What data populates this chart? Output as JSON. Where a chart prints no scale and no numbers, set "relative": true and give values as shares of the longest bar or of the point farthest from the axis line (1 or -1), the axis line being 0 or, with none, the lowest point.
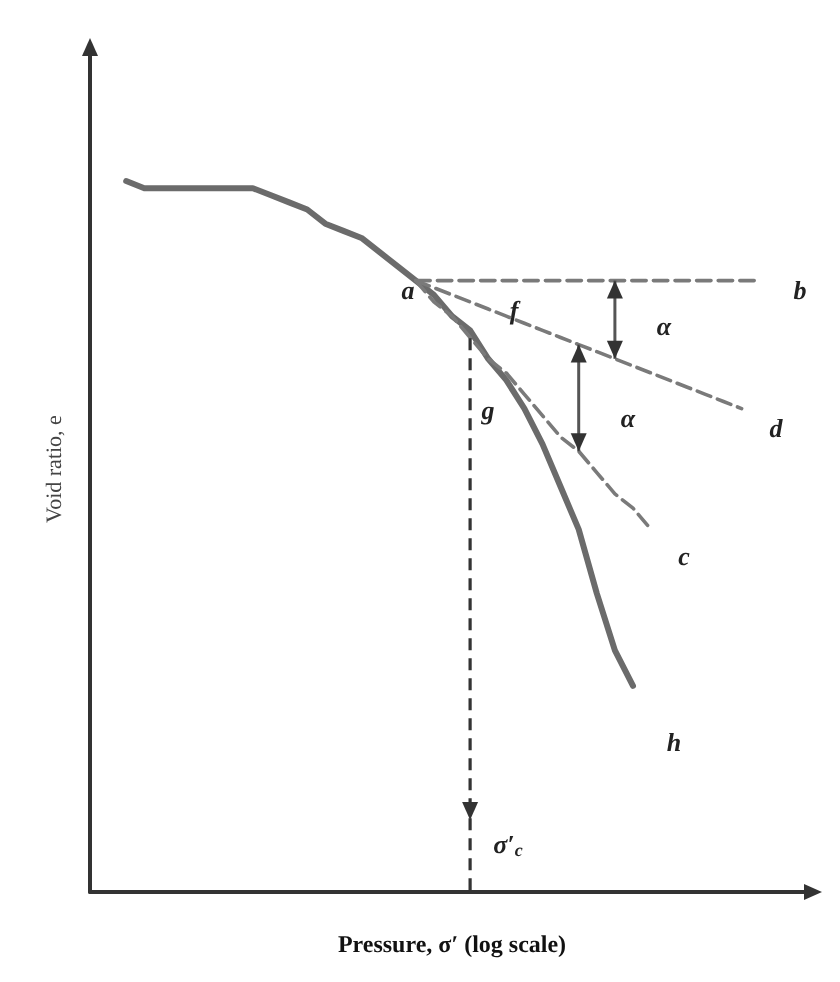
{
  "chart_data": {
    "type": "line",
    "relative": true,
    "xlabel": "Pressure, σ′ (log scale)",
    "ylabel": "Void ratio, e",
    "categories": [
      null,
      null,
      null,
      null,
      null,
      null,
      null,
      null,
      null,
      null,
      null,
      null,
      null,
      null,
      null,
      null,
      null,
      null,
      null,
      null,
      null,
      null,
      null,
      null,
      null,
      null,
      null,
      null,
      null,
      null,
      null,
      null,
      null,
      null,
      null,
      null,
      null,
      null,
      null,
      null,
      null
    ],
    "series": [
      {
        "color": "#6b6b6b",
        "values": [
          null,
          null,
          1.0,
          0.99,
          0.99,
          0.99,
          0.99,
          0.99,
          0.99,
          0.99,
          0.98,
          0.97,
          0.96,
          0.94,
          0.93,
          0.92,
          0.9,
          0.88,
          0.86,
          0.84,
          0.81,
          0.79,
          0.75,
          0.72,
          0.68,
          0.63,
          0.57,
          0.51,
          0.42,
          0.34,
          0.29,
          null,
          null,
          null,
          null,
          null,
          null,
          null,
          null,
          null,
          null
        ]
      },
      {
        "color": "#7a7a7a",
        "line_style": "dashed",
        "values": [
          null,
          null,
          null,
          null,
          null,
          null,
          null,
          null,
          null,
          null,
          null,
          null,
          null,
          null,
          null,
          null,
          null,
          null,
          0.86,
          0.86,
          0.86,
          0.86,
          0.86,
          0.86,
          0.86,
          0.86,
          0.86,
          0.86,
          0.86,
          0.86,
          0.86,
          0.86,
          0.86,
          0.86,
          0.86,
          0.86,
          0.86,
          0.86,
          null,
          null,
          null
        ]
      },
      {
        "color": "#7a7a7a",
        "line_style": "dashed",
        "values": [
          null,
          null,
          null,
          null,
          null,
          null,
          null,
          null,
          null,
          null,
          null,
          null,
          null,
          null,
          null,
          null,
          null,
          null,
          0.86,
          0.85,
          0.84,
          0.83,
          0.82,
          0.81,
          0.8,
          0.79,
          0.78,
          0.77,
          0.76,
          0.75,
          0.74,
          0.73,
          0.72,
          0.71,
          0.7,
          0.69,
          0.68,
          null,
          null,
          null,
          null
        ]
      },
      {
        "color": "#7a7a7a",
        "line_style": "dashed",
        "values": [
          null,
          null,
          null,
          null,
          null,
          null,
          null,
          null,
          null,
          null,
          null,
          null,
          null,
          null,
          null,
          null,
          null,
          null,
          0.86,
          0.83,
          0.81,
          0.78,
          0.75,
          0.73,
          0.7,
          0.67,
          0.64,
          0.62,
          0.59,
          0.56,
          0.54,
          0.51,
          null,
          null,
          null,
          null,
          null,
          null,
          null,
          null,
          null
        ]
      }
    ],
    "annotations": [
      "a",
      "b",
      "d",
      "c",
      "f",
      "g",
      "α",
      "α",
      "h",
      "σ′$_{c}$"
    ]
  }
}
